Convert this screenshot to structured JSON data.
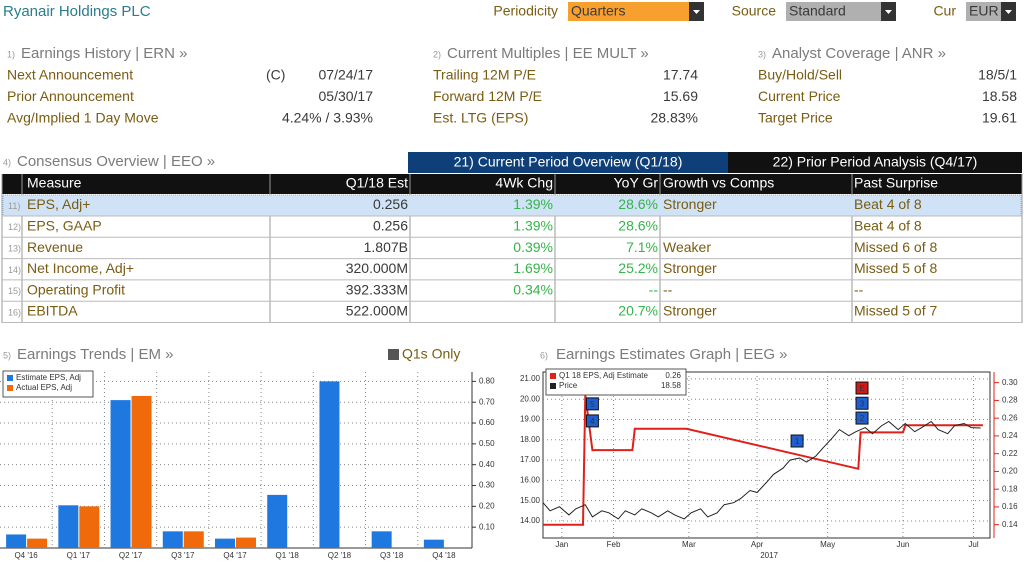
{
  "header": {
    "title": "Ryanair Holdings PLC",
    "periodicity": {
      "label": "Periodicity",
      "value": "Quarters"
    },
    "source": {
      "label": "Source",
      "value": "Standard"
    },
    "currency": {
      "label": "Cur",
      "value": "EUR"
    }
  },
  "sections": [
    {
      "number": "1)",
      "title": "Earnings History | ERN »",
      "rows": [
        {
          "label": "Next Announcement",
          "flag": "(C)",
          "value": "07/24/17"
        },
        {
          "label": "Prior Announcement",
          "value": "05/30/17"
        },
        {
          "label": "Avg/Implied 1 Day Move",
          "value": "4.24% / 3.93%"
        }
      ]
    },
    {
      "number": "2)",
      "title": "Current Multiples | EE MULT »",
      "rows": [
        {
          "label": "Trailing 12M P/E",
          "value": "17.74"
        },
        {
          "label": "Forward 12M P/E",
          "value": "15.69"
        },
        {
          "label": "Est. LTG (EPS)",
          "value": "28.83%"
        }
      ]
    },
    {
      "number": "3)",
      "title": "Analyst Coverage | ANR »",
      "rows": [
        {
          "label": "Buy/Hold/Sell",
          "value": "18/5/1"
        },
        {
          "label": "Current Price",
          "value": "18.58"
        },
        {
          "label": "Target Price",
          "value": "19.61"
        }
      ]
    }
  ],
  "consensus": {
    "number": "4)",
    "title": "Consensus Overview | EEO »",
    "tabs": [
      "21) Current Period Overview (Q1/18)",
      "22) Prior Period Analysis (Q4/17)"
    ],
    "columns": [
      "Measure",
      "Q1/18 Est",
      "4Wk Chg",
      "YoY Gr",
      "Growth vs Comps",
      "Past Surprise"
    ],
    "rows": [
      {
        "number": "11)",
        "cells": [
          "EPS, Adj+",
          "0.256",
          "1.39%",
          "28.6%",
          "Stronger",
          "Beat 4 of 8"
        ]
      },
      {
        "number": "12)",
        "cells": [
          "EPS, GAAP",
          "0.256",
          "1.39%",
          "28.6%",
          null,
          "Beat 4 of 8"
        ]
      },
      {
        "number": "13)",
        "cells": [
          "Revenue",
          "1.807B",
          "0.39%",
          "7.1%",
          "Weaker",
          "Missed 6 of 8"
        ]
      },
      {
        "number": "14)",
        "cells": [
          "Net Income, Adj+",
          "320.000M",
          "1.69%",
          "25.2%",
          "Stronger",
          "Missed 5 of 8"
        ]
      },
      {
        "number": "15)",
        "cells": [
          "Operating Profit",
          "392.333M",
          "0.34%",
          "--",
          "--",
          "--"
        ]
      },
      {
        "number": "16)",
        "cells": [
          "EBITDA",
          "522.000M",
          null,
          "20.7%",
          "Stronger",
          "Missed 5 of 7"
        ]
      }
    ]
  },
  "chart_data": [
    {
      "type": "bar",
      "number": "5)",
      "title": "Earnings Trends | EM »",
      "toggle": "Q1s Only",
      "toggle_color": "#555555",
      "categories": [
        "Q4 '16",
        "Q1 '17",
        "Q2 '17",
        "Q3 '17",
        "Q4 '17",
        "Q1 '18",
        "Q2 '18",
        "Q3 '18",
        "Q4 '18"
      ],
      "series": [
        {
          "name": "Estimate EPS, Adj",
          "color": "#1f77e0",
          "values": [
            0.065,
            0.205,
            0.71,
            0.08,
            0.045,
            0.255,
            0.8,
            0.08,
            0.04
          ]
        },
        {
          "name": "Actual EPS, Adj",
          "color": "#f06a0c",
          "values": [
            0.045,
            0.2,
            0.73,
            0.08,
            0.05,
            null,
            null,
            null,
            null
          ]
        }
      ],
      "ylim": [
        0,
        0.845
      ],
      "yticks": [
        {
          "value": 0.1,
          "label": "0.10"
        },
        {
          "value": 0.2,
          "label": "0.20"
        },
        {
          "value": 0.3,
          "label": "0.30"
        },
        {
          "value": 0.4,
          "label": "0.40"
        },
        {
          "value": 0.5,
          "label": "0.50"
        },
        {
          "value": 0.6,
          "label": "0.60"
        },
        {
          "value": 0.7,
          "label": "0.70"
        },
        {
          "value": 0.8,
          "label": "0.80"
        }
      ],
      "grid": true,
      "legend": "top-left"
    },
    {
      "type": "line",
      "number": "6)",
      "title": "Earnings Estimates Graph | EEG »",
      "x_label": "2017",
      "xlim": [
        7,
        197
      ],
      "xticks": [
        {
          "value": 15,
          "label": "Jan"
        },
        {
          "value": 37,
          "label": "Feb"
        },
        {
          "value": 69,
          "label": "Mar"
        },
        {
          "value": 98,
          "label": "Apr"
        },
        {
          "value": 128,
          "label": "May"
        },
        {
          "value": 160,
          "label": "Jun"
        },
        {
          "value": 190,
          "label": "Jul"
        }
      ],
      "ylim": [
        13.16,
        21.34
      ],
      "yticks": [
        {
          "value": 14,
          "label": "14.00"
        },
        {
          "value": 15,
          "label": "15.00"
        },
        {
          "value": 16,
          "label": "16.00"
        },
        {
          "value": 17,
          "label": "17.00"
        },
        {
          "value": 18,
          "label": "18.00"
        },
        {
          "value": 19,
          "label": "19.00"
        },
        {
          "value": 20,
          "label": "20.00"
        },
        {
          "value": 21,
          "label": "21.00"
        }
      ],
      "y2lim": [
        0.125,
        0.312
      ],
      "y2ticks": [
        {
          "value": 0.14,
          "label": "0.14"
        },
        {
          "value": 0.16,
          "label": "0.16"
        },
        {
          "value": 0.18,
          "label": "0.18"
        },
        {
          "value": 0.2,
          "label": "0.20"
        },
        {
          "value": 0.22,
          "label": "0.22"
        },
        {
          "value": 0.24,
          "label": "0.24"
        },
        {
          "value": 0.26,
          "label": "0.26"
        },
        {
          "value": 0.28,
          "label": "0.28"
        },
        {
          "value": 0.3,
          "label": "0.30"
        }
      ],
      "grid": true,
      "legend": "top-left",
      "series": [
        {
          "name": "Q1 18 EPS, Adj Estimate",
          "legend_value": 0.26,
          "color": "#e0201a",
          "axis": "y2",
          "x": [
            7,
            24,
            25,
            28,
            45,
            46,
            68,
            141,
            142,
            160,
            161,
            194
          ],
          "values": [
            0.14,
            0.14,
            0.286,
            0.224,
            0.224,
            0.248,
            0.248,
            0.203,
            0.244,
            0.244,
            0.252,
            0.252
          ]
        },
        {
          "name": "Price",
          "legend_value": 18.58,
          "color": "#222222",
          "x": [
            7,
            10,
            14,
            18,
            21,
            25,
            28,
            32,
            35,
            39,
            42,
            46,
            49,
            53,
            56,
            60,
            63,
            67,
            70,
            74,
            77,
            81,
            84,
            88,
            91,
            95,
            98,
            102,
            105,
            109,
            112,
            116,
            119,
            123,
            126,
            130,
            133,
            137,
            140,
            144,
            147,
            151,
            154,
            158,
            161,
            165,
            168,
            172,
            175,
            179,
            182,
            186,
            189,
            193
          ],
          "values": [
            14.9,
            14.5,
            14.7,
            14.3,
            14.6,
            14.8,
            14.2,
            14.5,
            14.4,
            14.1,
            14.5,
            14.3,
            14.6,
            14.4,
            14.2,
            14.5,
            14.3,
            14.1,
            14.4,
            14.6,
            14.2,
            14.4,
            14.8,
            14.9,
            15.1,
            15.5,
            15.4,
            15.9,
            16.3,
            16.6,
            17.0,
            17.1,
            16.9,
            17.2,
            17.6,
            18.1,
            18.5,
            18.2,
            18.4,
            18.6,
            18.3,
            18.7,
            18.9,
            18.5,
            18.8,
            18.4,
            18.6,
            18.9,
            18.5,
            18.3,
            18.7,
            18.8,
            18.6,
            18.58
          ]
        }
      ],
      "annotations": [
        {
          "label": "5",
          "x": 28,
          "y": 19.77,
          "color": "#1f5fd0"
        },
        {
          "label": "4",
          "x": 28,
          "y": 18.93,
          "color": "#1f5fd0"
        },
        {
          "label": "1",
          "x": 115,
          "y": 17.94,
          "color": "#1f5fd0"
        },
        {
          "label": "E",
          "x": 142.6,
          "y": 20.55,
          "color": "#d01a1a"
        },
        {
          "label": "3",
          "x": 142.6,
          "y": 19.8,
          "color": "#1f5fd0"
        },
        {
          "label": "2",
          "x": 142.6,
          "y": 19.07,
          "color": "#1f5fd0"
        }
      ]
    }
  ]
}
